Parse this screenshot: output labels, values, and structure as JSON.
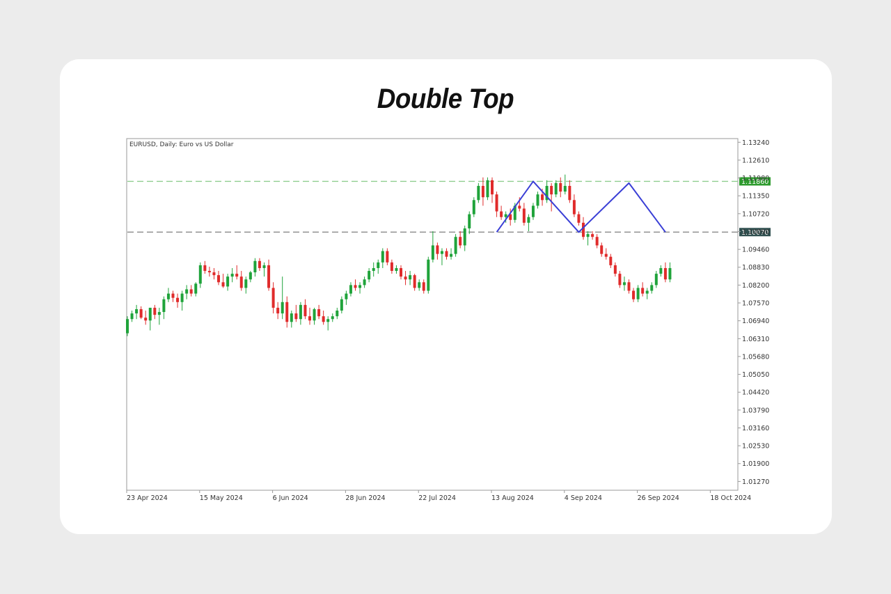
{
  "page": {
    "title": "Double Top"
  },
  "chart_data": {
    "type": "candlestick",
    "title": "Double Top",
    "symbol_label": "EURUSD, Daily:  Euro vs US Dollar",
    "y_ticks": [
      "1.13240",
      "1.12610",
      "1.11980",
      "1.11350",
      "1.10720",
      "1.10090",
      "1.09460",
      "1.08830",
      "1.08200",
      "1.07570",
      "1.06940",
      "1.06310",
      "1.05680",
      "1.05050",
      "1.04420",
      "1.03790",
      "1.03160",
      "1.02530",
      "1.01900",
      "1.01270"
    ],
    "ylim": [
      1.0096,
      1.1337
    ],
    "x_ticks": [
      "23 Apr 2024",
      "15 May 2024",
      "6 Jun 2024",
      "28 Jun 2024",
      "22 Jul 2024",
      "13 Aug 2024",
      "4 Sep 2024",
      "26 Sep 2024",
      "18 Oct 2024"
    ],
    "x_tick_index": [
      0,
      16,
      32,
      48,
      64,
      80,
      96,
      112,
      128
    ],
    "grid": false,
    "levels": [
      {
        "name": "resistance",
        "value": 1.1186,
        "label": "1.11860",
        "color": "#2e9b2e",
        "line_color": "#8fce8f"
      },
      {
        "name": "neckline",
        "value": 1.1007,
        "label": "1.10070",
        "color": "#2f4f4f",
        "line_color": "#8a8a8a"
      }
    ],
    "pattern_color": "#3a3fd6",
    "pattern_points": [
      {
        "i": 81,
        "price": 1.1007
      },
      {
        "i": 89,
        "price": 1.1186
      },
      {
        "i": 99,
        "price": 1.1007
      },
      {
        "i": 110,
        "price": 1.118
      },
      {
        "i": 118,
        "price": 1.1007
      }
    ],
    "up_color": "#1fa33a",
    "down_color": "#e02b2b",
    "candles_ohlc": [
      [
        1.065,
        1.071,
        1.064,
        1.07
      ],
      [
        1.07,
        1.073,
        1.069,
        1.072
      ],
      [
        1.072,
        1.075,
        1.07,
        1.0735
      ],
      [
        1.0735,
        1.0745,
        1.07,
        1.0705
      ],
      [
        1.0705,
        1.073,
        1.068,
        1.0695
      ],
      [
        1.0695,
        1.074,
        1.066,
        1.074
      ],
      [
        1.074,
        1.075,
        1.07,
        1.0715
      ],
      [
        1.0715,
        1.074,
        1.068,
        1.0725
      ],
      [
        1.0725,
        1.078,
        1.07,
        1.077
      ],
      [
        1.077,
        1.081,
        1.076,
        1.079
      ],
      [
        1.079,
        1.08,
        1.076,
        1.0775
      ],
      [
        1.0775,
        1.079,
        1.074,
        1.076
      ],
      [
        1.076,
        1.08,
        1.073,
        1.079
      ],
      [
        1.079,
        1.082,
        1.077,
        1.0805
      ],
      [
        1.0805,
        1.082,
        1.078,
        1.079
      ],
      [
        1.079,
        1.083,
        1.078,
        1.0825
      ],
      [
        1.0825,
        1.09,
        1.081,
        1.089
      ],
      [
        1.089,
        1.0905,
        1.086,
        1.087
      ],
      [
        1.087,
        1.0885,
        1.085,
        1.0865
      ],
      [
        1.0865,
        1.088,
        1.084,
        1.0855
      ],
      [
        1.0855,
        1.087,
        1.082,
        1.083
      ],
      [
        1.083,
        1.086,
        1.081,
        1.0815
      ],
      [
        1.0815,
        1.086,
        1.08,
        1.085
      ],
      [
        1.085,
        1.088,
        1.083,
        1.086
      ],
      [
        1.086,
        1.089,
        1.084,
        1.085
      ],
      [
        1.085,
        1.087,
        1.08,
        1.081
      ],
      [
        1.081,
        1.085,
        1.079,
        1.084
      ],
      [
        1.084,
        1.087,
        1.083,
        1.0865
      ],
      [
        1.0865,
        1.0915,
        1.085,
        1.0905
      ],
      [
        1.0905,
        1.0915,
        1.087,
        1.088
      ],
      [
        1.088,
        1.09,
        1.085,
        1.089
      ],
      [
        1.089,
        1.091,
        1.08,
        1.081
      ],
      [
        1.081,
        1.083,
        1.072,
        1.074
      ],
      [
        1.074,
        1.076,
        1.07,
        1.072
      ],
      [
        1.072,
        1.085,
        1.07,
        1.076
      ],
      [
        1.076,
        1.078,
        1.067,
        1.069
      ],
      [
        1.069,
        1.073,
        1.067,
        1.072
      ],
      [
        1.072,
        1.075,
        1.069,
        1.07
      ],
      [
        1.07,
        1.076,
        1.068,
        1.075
      ],
      [
        1.075,
        1.077,
        1.07,
        1.071
      ],
      [
        1.071,
        1.074,
        1.068,
        1.0695
      ],
      [
        1.0695,
        1.074,
        1.068,
        1.0735
      ],
      [
        1.0735,
        1.075,
        1.07,
        1.071
      ],
      [
        1.071,
        1.073,
        1.068,
        1.069
      ],
      [
        1.069,
        1.071,
        1.066,
        1.07
      ],
      [
        1.07,
        1.072,
        1.069,
        1.071
      ],
      [
        1.071,
        1.074,
        1.07,
        1.073
      ],
      [
        1.073,
        1.078,
        1.072,
        1.077
      ],
      [
        1.077,
        1.08,
        1.075,
        1.079
      ],
      [
        1.079,
        1.083,
        1.078,
        1.082
      ],
      [
        1.082,
        1.084,
        1.08,
        1.081
      ],
      [
        1.081,
        1.083,
        1.079,
        1.082
      ],
      [
        1.082,
        1.085,
        1.081,
        1.084
      ],
      [
        1.084,
        1.088,
        1.083,
        1.087
      ],
      [
        1.087,
        1.09,
        1.085,
        1.088
      ],
      [
        1.088,
        1.091,
        1.086,
        1.09
      ],
      [
        1.09,
        1.095,
        1.088,
        1.094
      ],
      [
        1.094,
        1.095,
        1.089,
        1.09
      ],
      [
        1.09,
        1.091,
        1.086,
        1.087
      ],
      [
        1.087,
        1.089,
        1.086,
        1.088
      ],
      [
        1.088,
        1.089,
        1.084,
        1.085
      ],
      [
        1.085,
        1.087,
        1.082,
        1.084
      ],
      [
        1.084,
        1.087,
        1.082,
        1.0855
      ],
      [
        1.0855,
        1.086,
        1.08,
        1.081
      ],
      [
        1.081,
        1.084,
        1.08,
        1.083
      ],
      [
        1.083,
        1.084,
        1.079,
        1.08
      ],
      [
        1.08,
        1.092,
        1.079,
        1.091
      ],
      [
        1.091,
        1.101,
        1.09,
        1.096
      ],
      [
        1.096,
        1.097,
        1.091,
        1.093
      ],
      [
        1.093,
        1.095,
        1.089,
        1.094
      ],
      [
        1.094,
        1.095,
        1.091,
        1.092
      ],
      [
        1.092,
        1.095,
        1.091,
        1.093
      ],
      [
        1.093,
        1.1,
        1.092,
        1.099
      ],
      [
        1.099,
        1.101,
        1.095,
        1.096
      ],
      [
        1.096,
        1.103,
        1.094,
        1.102
      ],
      [
        1.102,
        1.108,
        1.1,
        1.107
      ],
      [
        1.107,
        1.113,
        1.106,
        1.112
      ],
      [
        1.112,
        1.118,
        1.111,
        1.117
      ],
      [
        1.117,
        1.12,
        1.11,
        1.113
      ],
      [
        1.113,
        1.12,
        1.112,
        1.119
      ],
      [
        1.119,
        1.12,
        1.111,
        1.114
      ],
      [
        1.114,
        1.115,
        1.106,
        1.108
      ],
      [
        1.108,
        1.11,
        1.105,
        1.106
      ],
      [
        1.106,
        1.108,
        1.104,
        1.107
      ],
      [
        1.107,
        1.109,
        1.103,
        1.105
      ],
      [
        1.105,
        1.111,
        1.104,
        1.11
      ],
      [
        1.11,
        1.113,
        1.108,
        1.109
      ],
      [
        1.109,
        1.111,
        1.103,
        1.104
      ],
      [
        1.104,
        1.107,
        1.101,
        1.106
      ],
      [
        1.106,
        1.111,
        1.105,
        1.11
      ],
      [
        1.11,
        1.115,
        1.109,
        1.114
      ],
      [
        1.114,
        1.116,
        1.11,
        1.112
      ],
      [
        1.112,
        1.119,
        1.111,
        1.117
      ],
      [
        1.117,
        1.118,
        1.108,
        1.114
      ],
      [
        1.114,
        1.119,
        1.113,
        1.118
      ],
      [
        1.118,
        1.12,
        1.113,
        1.115
      ],
      [
        1.115,
        1.121,
        1.114,
        1.117
      ],
      [
        1.117,
        1.119,
        1.111,
        1.112
      ],
      [
        1.112,
        1.114,
        1.106,
        1.107
      ],
      [
        1.107,
        1.108,
        1.103,
        1.104
      ],
      [
        1.104,
        1.106,
        1.098,
        1.099
      ],
      [
        1.099,
        1.101,
        1.096,
        1.1
      ],
      [
        1.1,
        1.101,
        1.098,
        1.099
      ],
      [
        1.099,
        1.1,
        1.095,
        1.096
      ],
      [
        1.096,
        1.097,
        1.092,
        1.093
      ],
      [
        1.093,
        1.095,
        1.091,
        1.092
      ],
      [
        1.092,
        1.093,
        1.088,
        1.089
      ],
      [
        1.089,
        1.09,
        1.085,
        1.086
      ],
      [
        1.086,
        1.087,
        1.081,
        1.082
      ],
      [
        1.082,
        1.085,
        1.08,
        1.083
      ],
      [
        1.083,
        1.084,
        1.079,
        1.08
      ],
      [
        1.08,
        1.081,
        1.076,
        1.077
      ],
      [
        1.077,
        1.082,
        1.076,
        1.081
      ],
      [
        1.081,
        1.083,
        1.078,
        1.079
      ],
      [
        1.079,
        1.081,
        1.077,
        1.08
      ],
      [
        1.08,
        1.083,
        1.079,
        1.082
      ],
      [
        1.082,
        1.087,
        1.081,
        1.086
      ],
      [
        1.086,
        1.089,
        1.085,
        1.088
      ],
      [
        1.088,
        1.09,
        1.083,
        1.084
      ],
      [
        1.084,
        1.09,
        1.083,
        1.088
      ]
    ]
  }
}
